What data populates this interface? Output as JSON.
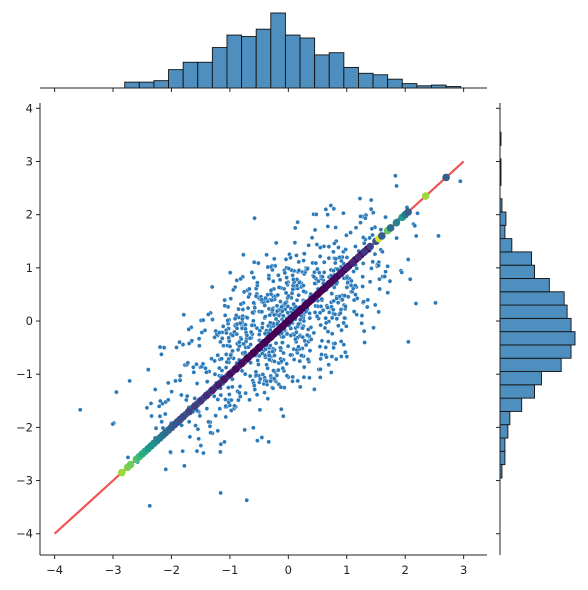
{
  "chart_data": {
    "type": "scatter",
    "kind": "joint-plot",
    "xlim": [
      -4.25,
      3.4
    ],
    "ylim": [
      -4.4,
      4.1
    ],
    "x_ticks": [
      -4,
      -3,
      -2,
      -1,
      0,
      1,
      2,
      3
    ],
    "y_ticks": [
      -4,
      -3,
      -2,
      -1,
      0,
      1,
      2,
      3,
      4
    ],
    "x_tick_labels": [
      "−4",
      "−3",
      "−2",
      "−1",
      "0",
      "1",
      "2",
      "3"
    ],
    "y_tick_labels": [
      "−4",
      "−3",
      "−2",
      "−1",
      "0",
      "1",
      "2",
      "3",
      "4"
    ],
    "grid": false,
    "legend": "none",
    "scatter_color": "#2a79b9",
    "hist_color": "#4f8fbf",
    "reference_line": {
      "points": [
        [
          -4,
          -4
        ],
        [
          3,
          3
        ]
      ],
      "color": "#f04040"
    },
    "diagonal_points": {
      "colormap": "viridis",
      "x_values": [
        -2.85,
        -2.75,
        -2.7,
        -2.6,
        -2.55,
        -2.5,
        -2.45,
        -2.4,
        -2.35,
        -2.3,
        -2.25,
        -2.2,
        -2.15,
        -2.1,
        -2.05,
        -2.0,
        -1.95,
        -1.9,
        -1.85,
        -1.8,
        -1.7,
        -1.6,
        -1.5,
        -1.4,
        -1.3,
        -1.2,
        -1.1,
        -1.0,
        -0.9,
        -0.8,
        -0.7,
        -0.6,
        -0.5,
        -0.4,
        -0.3,
        -0.2,
        -0.1,
        0.0,
        0.1,
        0.2,
        0.3,
        0.4,
        0.5,
        0.6,
        0.7,
        0.8,
        0.9,
        1.0,
        1.1,
        1.2,
        1.3,
        1.4,
        1.5,
        1.55,
        1.6,
        1.7,
        1.75,
        1.85,
        1.95,
        2.0,
        2.05,
        2.35,
        2.7
      ],
      "color_values": [
        0.85,
        0.8,
        0.78,
        0.72,
        0.68,
        0.62,
        0.6,
        0.55,
        0.52,
        0.5,
        0.46,
        0.42,
        0.4,
        0.36,
        0.34,
        0.3,
        0.28,
        0.26,
        0.24,
        0.22,
        0.2,
        0.18,
        0.15,
        0.12,
        0.1,
        0.08,
        0.06,
        0.04,
        0.03,
        0.02,
        0.01,
        0.0,
        0.0,
        0.0,
        0.0,
        0.0,
        0.0,
        0.0,
        0.0,
        0.0,
        0.0,
        0.0,
        0.0,
        0.01,
        0.02,
        0.03,
        0.05,
        0.07,
        0.1,
        0.12,
        0.15,
        0.2,
        0.25,
        0.95,
        0.3,
        0.75,
        0.35,
        0.45,
        0.55,
        0.4,
        0.3,
        0.85,
        0.3
      ]
    },
    "x_hist": {
      "bin_edges": [
        -2.8,
        -2.55,
        -2.3,
        -2.05,
        -1.8,
        -1.55,
        -1.3,
        -1.05,
        -0.8,
        -0.55,
        -0.3,
        -0.05,
        0.2,
        0.45,
        0.7,
        0.95,
        1.2,
        1.45,
        1.7,
        1.95,
        2.2,
        2.45,
        2.7,
        2.95
      ],
      "counts": [
        8,
        8,
        10,
        25,
        35,
        35,
        55,
        72,
        70,
        80,
        102,
        72,
        68,
        45,
        48,
        28,
        20,
        18,
        12,
        6,
        3,
        4,
        2
      ]
    },
    "y_hist": {
      "bin_edges": [
        -2.95,
        -2.7,
        -2.45,
        -2.2,
        -1.95,
        -1.7,
        -1.45,
        -1.2,
        -0.95,
        -0.7,
        -0.45,
        -0.2,
        0.05,
        0.3,
        0.55,
        0.8,
        1.05,
        1.3,
        1.55,
        1.8,
        2.05,
        2.3,
        2.55,
        2.8,
        3.05,
        3.3,
        3.55
      ],
      "counts": [
        2,
        5,
        5,
        8,
        10,
        22,
        35,
        42,
        62,
        72,
        76,
        72,
        68,
        65,
        50,
        35,
        32,
        12,
        5,
        6,
        2,
        0,
        1,
        1,
        0,
        1
      ]
    },
    "scatter_sample": {
      "n": 900,
      "correlation": 0.7,
      "sd_y": 1.0
    }
  }
}
